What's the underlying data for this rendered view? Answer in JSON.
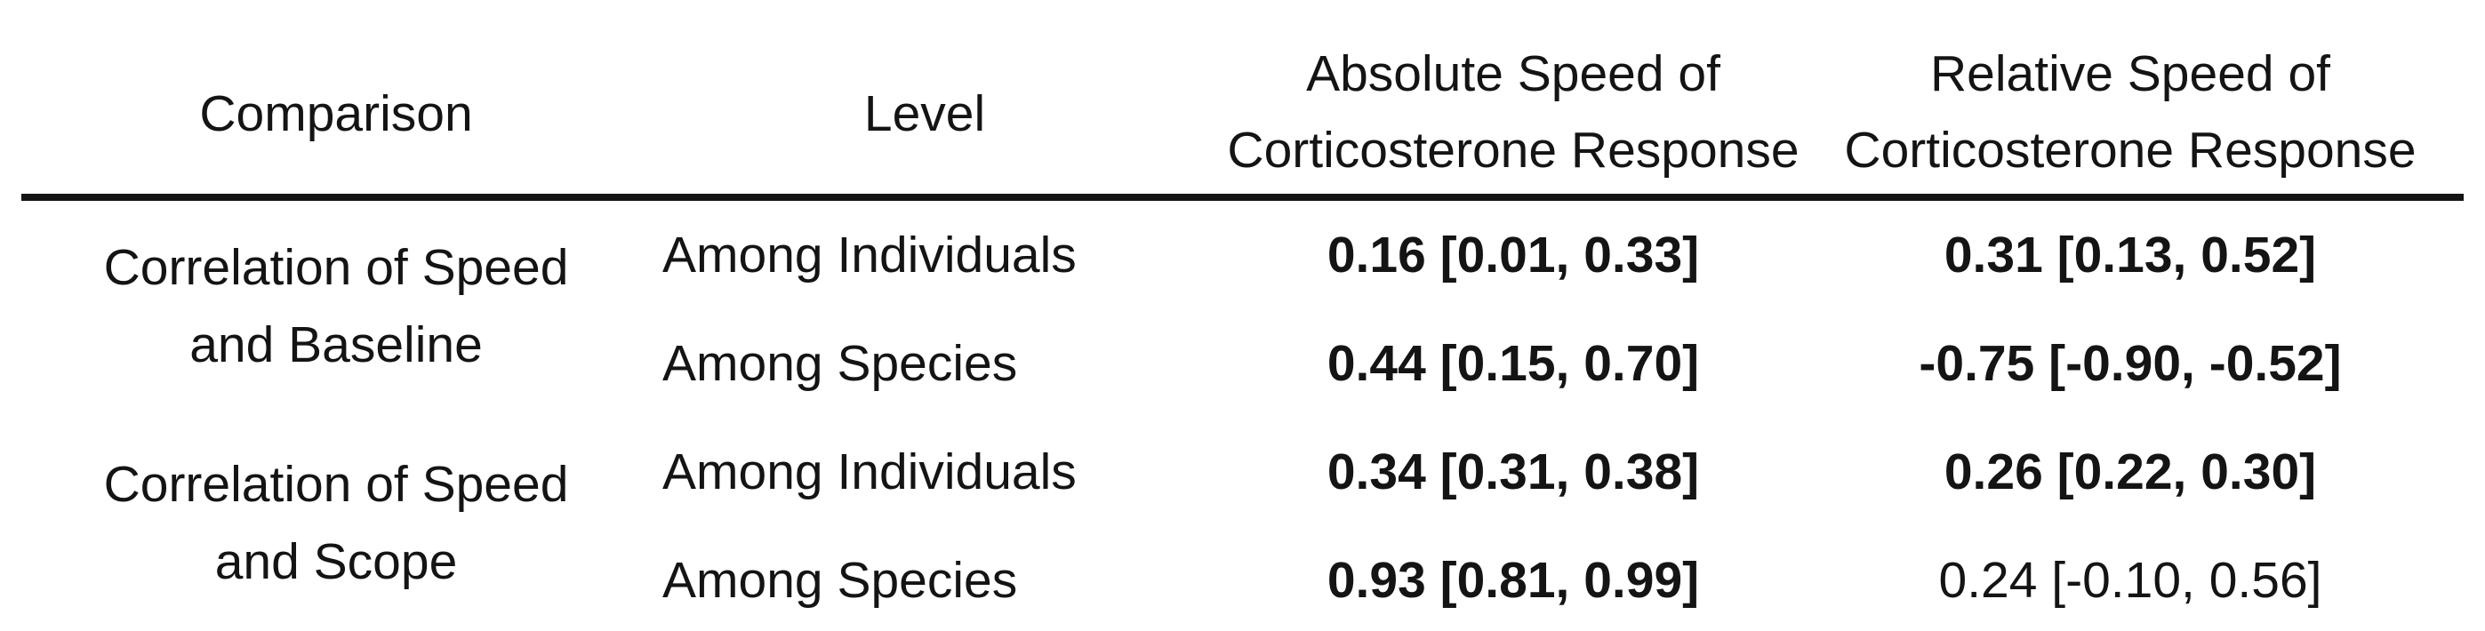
{
  "header": {
    "comparison": "Comparison",
    "level": "Level",
    "absolute_line1": "Absolute Speed of",
    "absolute_line2": "Corticosterone Response",
    "relative_line1": "Relative Speed of",
    "relative_line2": "Corticosterone Response"
  },
  "groups": [
    {
      "label_line1": "Correlation of Speed",
      "label_line2": "and Baseline",
      "rows": [
        {
          "level": "Among Individuals",
          "absolute": "0.16 [0.01, 0.33]",
          "absolute_bold": true,
          "relative": "0.31 [0.13, 0.52]",
          "relative_bold": true
        },
        {
          "level": "Among Species",
          "absolute": "0.44 [0.15, 0.70]",
          "absolute_bold": true,
          "relative": "-0.75 [-0.90, -0.52]",
          "relative_bold": true
        }
      ]
    },
    {
      "label_line1": "Correlation of Speed",
      "label_line2": "and Scope",
      "rows": [
        {
          "level": "Among Individuals",
          "absolute": "0.34 [0.31, 0.38]",
          "absolute_bold": true,
          "relative": "0.26 [0.22, 0.30]",
          "relative_bold": true
        },
        {
          "level": "Among Species",
          "absolute": "0.93 [0.81, 0.99]",
          "absolute_bold": true,
          "relative": "0.24 [-0.10, 0.56]",
          "relative_bold": false
        }
      ]
    }
  ]
}
